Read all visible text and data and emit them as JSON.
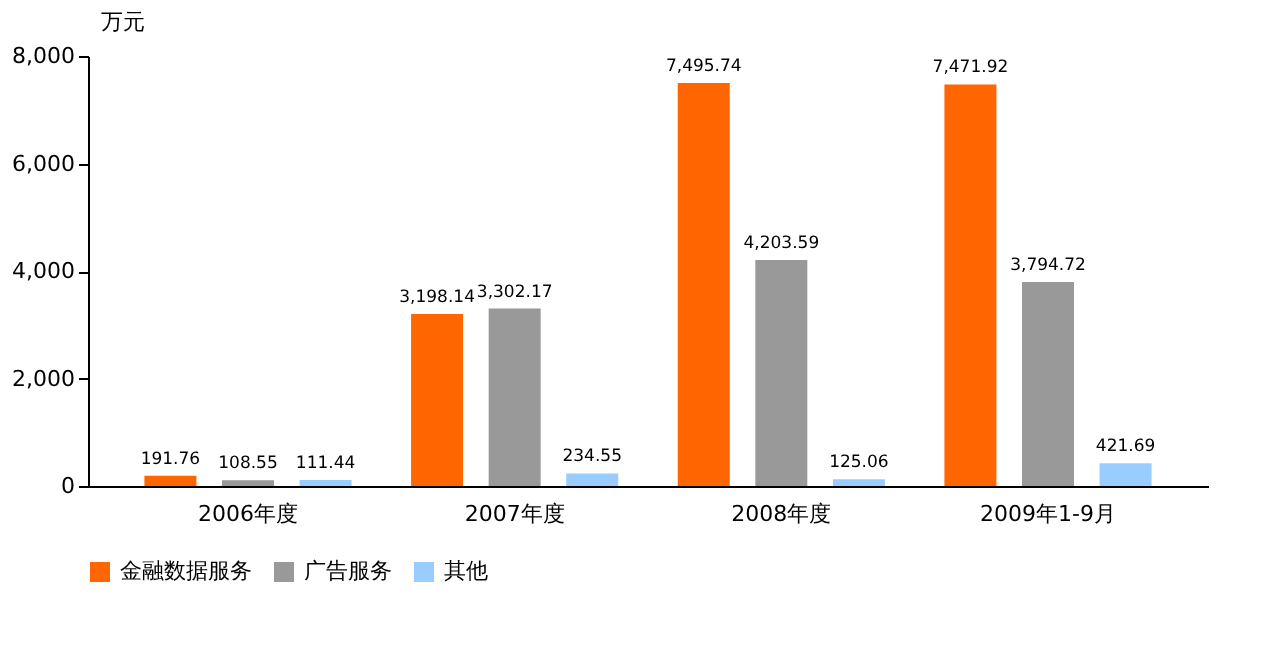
{
  "chart_data": {
    "type": "bar",
    "ylabel": "万元",
    "categories": [
      "2006年度",
      "2007年度",
      "2008年度",
      "2009年1-9月"
    ],
    "series": [
      {
        "name": "金融数据服务",
        "color": "#ff6600",
        "values": [
          191.76,
          3198.14,
          7495.74,
          7471.92
        ],
        "value_labels": [
          "191.76",
          "3,198.14",
          "7,495.74",
          "7,471.92"
        ]
      },
      {
        "name": "广告服务",
        "color": "#999999",
        "values": [
          108.55,
          3302.17,
          4203.59,
          3794.72
        ],
        "value_labels": [
          "108.55",
          "3,302.17",
          "4,203.59",
          "3,794.72"
        ]
      },
      {
        "name": "其他",
        "color": "#99ccff",
        "values": [
          111.44,
          234.55,
          125.06,
          421.69
        ],
        "value_labels": [
          "111.44",
          "234.55",
          "125.06",
          "421.69"
        ]
      }
    ],
    "ylim": [
      0,
      8000
    ],
    "yticks": [
      0,
      {
        "value": 2000,
        "label": "2,000"
      },
      {
        "value": 4000,
        "label": "4,000"
      },
      {
        "value": 6000,
        "label": "6,000"
      },
      {
        "value": 8000,
        "label": "8,000"
      }
    ],
    "grid": false,
    "legend": "bottom"
  }
}
